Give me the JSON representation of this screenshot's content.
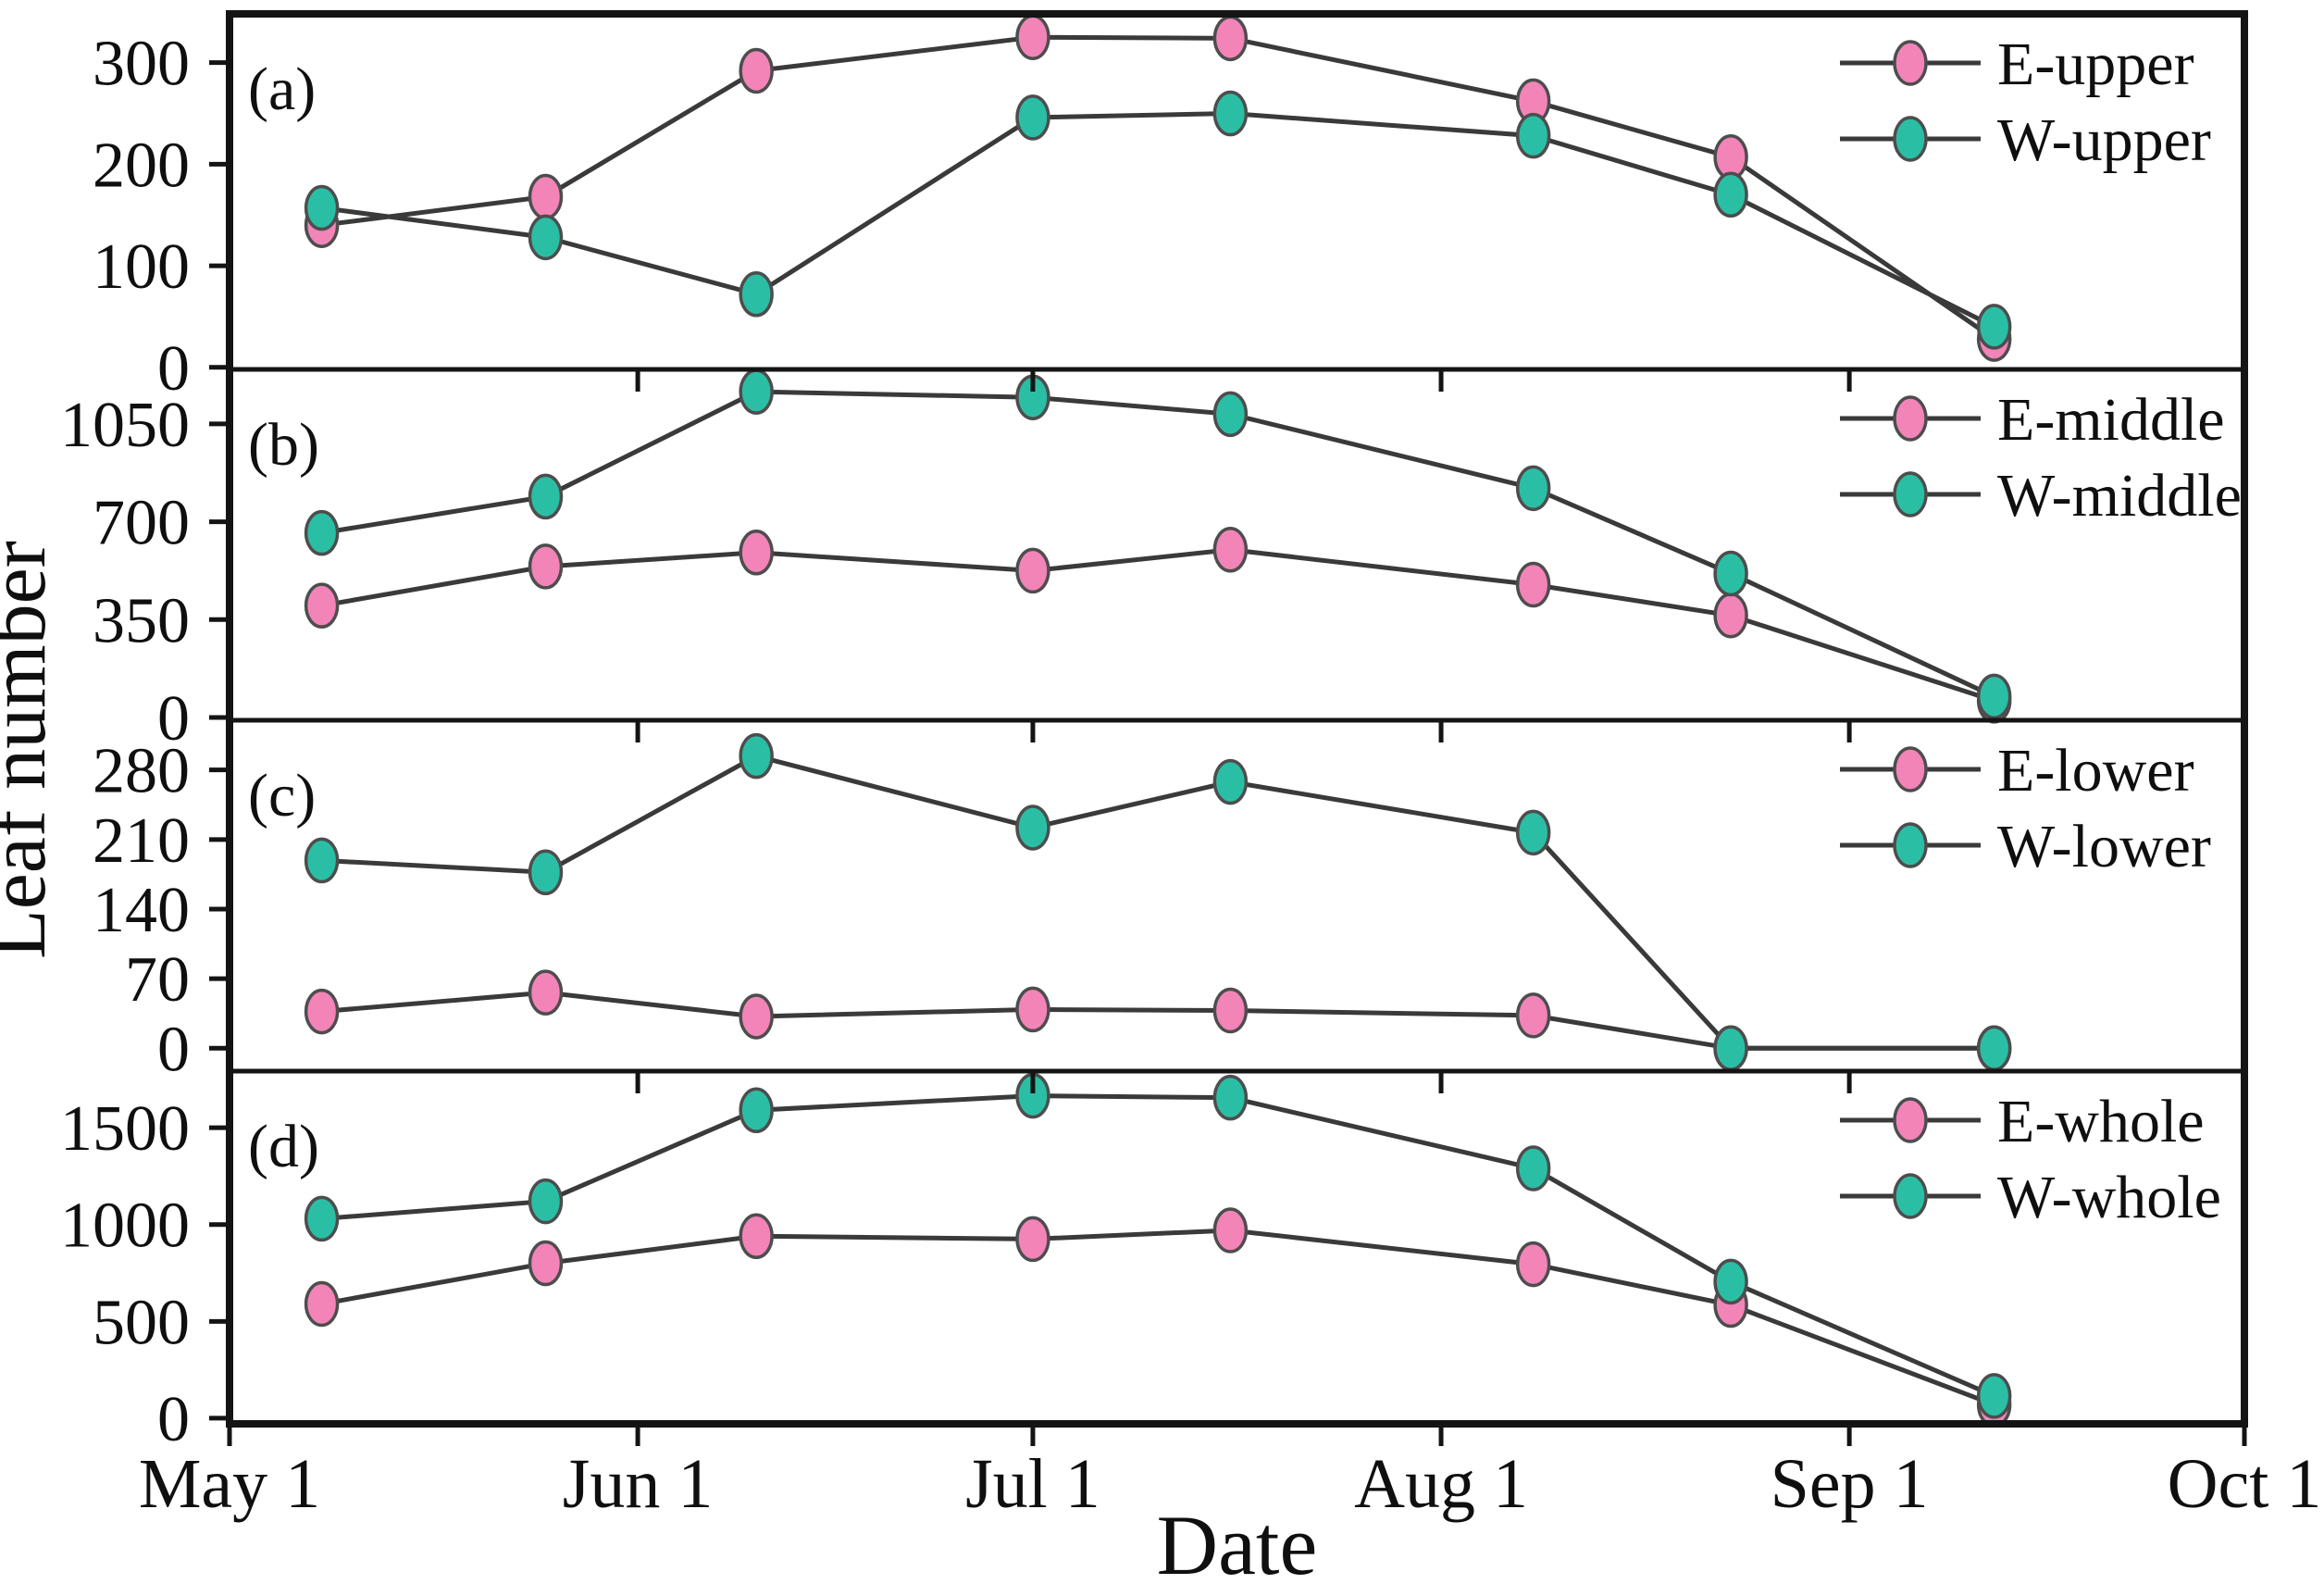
{
  "chart_data": {
    "type": "line",
    "title": "",
    "xlabel": "Date",
    "ylabel": "Leaf number",
    "grid": false,
    "legend_position": "top-right-inside",
    "x": [
      7,
      24,
      40,
      61,
      76,
      99,
      114,
      134
    ],
    "x_dates": [
      "May 8",
      "May 25",
      "Jun 10",
      "Jul 1",
      "Jul 16",
      "Aug 8",
      "Aug 23",
      "Sep 12"
    ],
    "xlim_days": [
      0,
      153
    ],
    "x_ticks": [
      {
        "day": 0,
        "label": "May 1"
      },
      {
        "day": 31,
        "label": "Jun 1"
      },
      {
        "day": 61,
        "label": "Jul 1"
      },
      {
        "day": 92,
        "label": "Aug 1"
      },
      {
        "day": 123,
        "label": "Sep 1"
      },
      {
        "day": 153,
        "label": "Oct 1"
      }
    ],
    "colors": {
      "E_marker_fill": "#f284b8",
      "W_marker_fill": "#2abfa5",
      "line": "#3a3a3a",
      "marker_stroke": "#4d4d4d",
      "frame": "#141414",
      "text": "#0f0f0f"
    },
    "panels": [
      {
        "tag": "(a)",
        "y_ticks": [
          0,
          100,
          200,
          300
        ],
        "ylim": [
          -2,
          348
        ],
        "series": [
          {
            "name": "E-upper",
            "group": "E",
            "values": [
              140,
              168,
              292,
              325,
              324,
              262,
              207,
              28
            ]
          },
          {
            "name": "W-upper",
            "group": "W",
            "values": [
              157,
              128,
              72,
              246,
              250,
              228,
              170,
              40
            ]
          }
        ]
      },
      {
        "tag": "(b)",
        "y_ticks": [
          0,
          350,
          700,
          1050
        ],
        "ylim": [
          -10,
          1245
        ],
        "series": [
          {
            "name": "E-middle",
            "group": "E",
            "values": [
              400,
              540,
              590,
              525,
              600,
              475,
              365,
              60
            ]
          },
          {
            "name": "W-middle",
            "group": "W",
            "values": [
              660,
              790,
              1165,
              1145,
              1085,
              820,
              515,
              75
            ]
          }
        ]
      },
      {
        "tag": "(c)",
        "y_ticks": [
          0,
          70,
          140,
          210,
          280
        ],
        "ylim": [
          -23,
          330
        ],
        "series": [
          {
            "name": "E-lower",
            "group": "E",
            "values": [
              37,
              56,
              32,
              39,
              38,
              33,
              0,
              0
            ]
          },
          {
            "name": "W-lower",
            "group": "W",
            "values": [
              189,
              177,
              294,
              222,
              268,
              217,
              0,
              0
            ]
          }
        ]
      },
      {
        "tag": "(d)",
        "y_ticks": [
          0,
          500,
          1000,
          1500
        ],
        "ylim": [
          -29,
          1792
        ],
        "series": [
          {
            "name": "E-whole",
            "group": "E",
            "values": [
              590,
              800,
              940,
              925,
              970,
              795,
              585,
              70
            ]
          },
          {
            "name": "W-whole",
            "group": "W",
            "values": [
              1030,
              1120,
              1590,
              1665,
              1655,
              1290,
              705,
              115
            ]
          }
        ]
      }
    ]
  }
}
